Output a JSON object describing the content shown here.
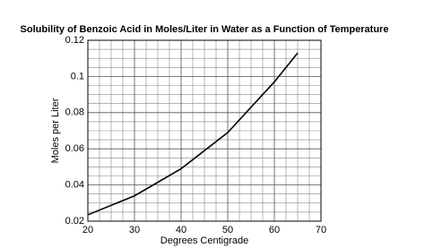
{
  "chart_data": {
    "type": "line",
    "title": "Solubility of Benzoic Acid in Moles/Liter in Water as a Function of Temperature",
    "x_label": "Degrees Centigrade",
    "y_label": "Moles per Liter",
    "x": [
      20,
      30,
      40,
      50,
      60,
      65
    ],
    "series": [
      {
        "color": "#000000",
        "values": [
          0.0235,
          0.034,
          0.049,
          0.069,
          0.097,
          0.113
        ]
      }
    ],
    "xlim": [
      20,
      70
    ],
    "ylim": [
      0.02,
      0.12
    ],
    "xticks": [
      20,
      30,
      40,
      50,
      60,
      70
    ],
    "yticks": [
      0.02,
      0.04,
      0.06,
      0.08,
      0.1,
      0.12
    ],
    "xminorticks": [
      22.5,
      25,
      27.5,
      32.5,
      35,
      37.5,
      42.5,
      45,
      47.5,
      52.5,
      55,
      57.5,
      62.5,
      65,
      67.5
    ],
    "yminorticks": [
      0.025,
      0.03,
      0.035,
      0.045,
      0.05,
      0.055,
      0.065,
      0.07,
      0.075,
      0.085,
      0.09,
      0.095,
      0.105,
      0.11,
      0.115
    ],
    "grid": true
  }
}
